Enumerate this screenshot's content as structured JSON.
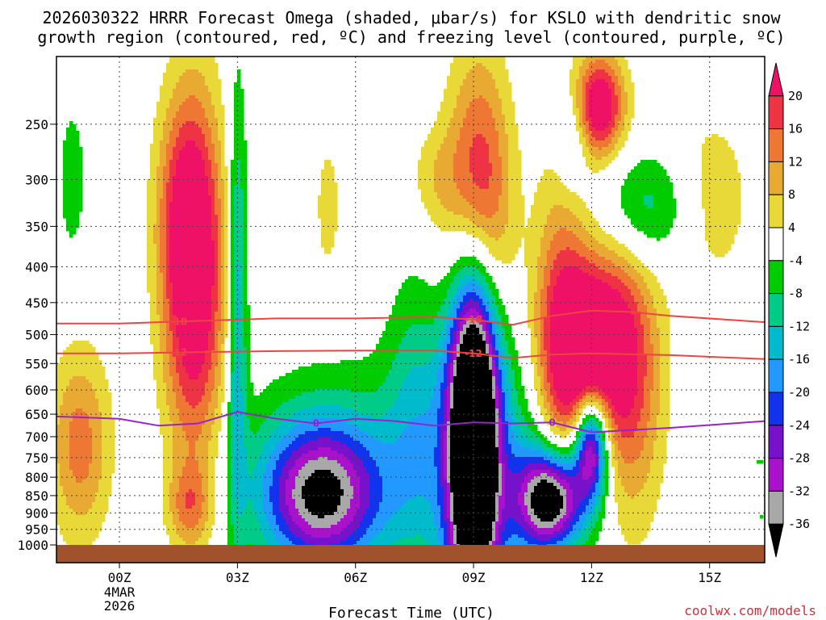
{
  "title": {
    "line1": "2026030322 HRRR Forecast Omega (shaded, μbar/s) for KSLO with dendritic snow",
    "line2": "growth region (contoured, red, ºC) and freezing level (contoured, purple, ºC)"
  },
  "xlabel": "Forecast Time (UTC)",
  "credit": "coolwx.com/models",
  "chart_data": {
    "type": "heatmap",
    "title": "2026030322 HRRR Forecast Omega (shaded, μbar/s) for KSLO with dendritic snow growth region (contoured, red, ºC) and freezing level (contoured, purple, ºC)",
    "xlabel": "Forecast Time (UTC)",
    "ylabel": "",
    "x_range_hours": [
      -1.6,
      16.4
    ],
    "y_range_hPa": [
      1000,
      200
    ],
    "y_scale": "log-pressure (inverted)",
    "x_ticks": [
      {
        "hour": 0,
        "label": "00Z",
        "sub": [
          "4MAR",
          "2026"
        ]
      },
      {
        "hour": 3,
        "label": "03Z",
        "sub": []
      },
      {
        "hour": 6,
        "label": "06Z",
        "sub": []
      },
      {
        "hour": 9,
        "label": "09Z",
        "sub": []
      },
      {
        "hour": 12,
        "label": "12Z",
        "sub": []
      },
      {
        "hour": 15,
        "label": "15Z",
        "sub": []
      }
    ],
    "y_ticks": [
      250,
      300,
      350,
      400,
      450,
      500,
      550,
      600,
      650,
      700,
      750,
      800,
      850,
      900,
      950,
      1000
    ],
    "grid": true,
    "colorbar": {
      "labels": [
        20,
        16,
        12,
        8,
        4,
        -4,
        -8,
        -12,
        -16,
        -20,
        -24,
        -28,
        -32,
        -36
      ],
      "colors": [
        "#ee1166",
        "#ee3344",
        "#ee7733",
        "#e8aa33",
        "#e8d838",
        "#ffffff",
        "#00cc00",
        "#00cc88",
        "#00bbcc",
        "#2299ff",
        "#1133ee",
        "#7711cc",
        "#aa11cc",
        "#a8a8a8",
        "#000000"
      ]
    },
    "omega_centers": [
      {
        "x": 1.9,
        "p": 420,
        "amp": 27,
        "sx": 0.55,
        "sy": 0.42
      },
      {
        "x": 1.6,
        "p": 330,
        "amp": 9,
        "sx": 0.5,
        "sy": 0.25
      },
      {
        "x": 9.1,
        "p": 330,
        "amp": 30,
        "sx": 0.55,
        "sy": 0.32
      },
      {
        "x": 9.0,
        "p": 660,
        "amp": -58,
        "sx": 0.45,
        "sy": 0.45
      },
      {
        "x": 12.2,
        "p": 235,
        "amp": 26,
        "sx": 0.45,
        "sy": 0.12
      },
      {
        "x": 12.0,
        "p": 520,
        "amp": 28,
        "sx": 0.75,
        "sy": 0.22
      },
      {
        "x": 11.2,
        "p": 560,
        "amp": 16,
        "sx": 0.5,
        "sy": 0.45
      },
      {
        "x": 13.0,
        "p": 600,
        "amp": 14,
        "sx": 0.6,
        "sy": 0.35
      },
      {
        "x": 11.0,
        "p": 860,
        "amp": -44,
        "sx": 0.6,
        "sy": 0.12
      },
      {
        "x": 12.0,
        "p": 720,
        "amp": -36,
        "sx": 0.3,
        "sy": 0.12
      },
      {
        "x": 5.1,
        "p": 850,
        "amp": -30,
        "sx": 1.0,
        "sy": 0.16
      },
      {
        "x": 5.5,
        "p": 800,
        "amp": -10,
        "sx": 1.8,
        "sy": 0.25
      },
      {
        "x": 3.0,
        "p": 450,
        "amp": -16,
        "sx": 0.18,
        "sy": 0.5
      },
      {
        "x": -1.0,
        "p": 720,
        "amp": 14,
        "sx": 0.55,
        "sy": 0.22
      },
      {
        "x": 1.8,
        "p": 880,
        "amp": 12,
        "sx": 0.4,
        "sy": 0.1
      },
      {
        "x": 15.0,
        "p": 320,
        "amp": 7,
        "sx": 0.8,
        "sy": 0.22
      },
      {
        "x": 13.4,
        "p": 330,
        "amp": -12,
        "sx": 0.85,
        "sy": 0.14
      },
      {
        "x": 11.5,
        "p": 260,
        "amp": -9,
        "sx": 0.3,
        "sy": 0.12
      },
      {
        "x": -1.2,
        "p": 300,
        "amp": -7,
        "sx": 0.25,
        "sy": 0.18
      },
      {
        "x": 7.5,
        "p": 600,
        "amp": -7,
        "sx": 0.5,
        "sy": 0.3
      },
      {
        "x": 5.3,
        "p": 330,
        "amp": 6,
        "sx": 0.25,
        "sy": 0.18
      },
      {
        "x": 8.0,
        "p": 300,
        "amp": 6,
        "sx": 0.45,
        "sy": 0.12
      },
      {
        "x": 9.5,
        "p": 800,
        "amp": -12,
        "sx": 1.6,
        "sy": 0.35
      },
      {
        "x": 16.3,
        "p": 830,
        "amp": -8,
        "sx": 0.2,
        "sy": 0.08
      }
    ],
    "isotherms": [
      {
        "label": "-18",
        "color": "#ee4444",
        "label_at": [
          1.5,
          9.0
        ],
        "points": [
          [
            -1.6,
            482
          ],
          [
            0,
            482
          ],
          [
            2,
            478
          ],
          [
            4,
            474
          ],
          [
            6,
            474
          ],
          [
            8,
            472
          ],
          [
            9,
            476
          ],
          [
            10,
            484
          ],
          [
            11,
            470
          ],
          [
            12,
            462
          ],
          [
            13,
            464
          ],
          [
            14,
            470
          ],
          [
            16.4,
            480
          ]
        ]
      },
      {
        "label": "-12",
        "color": "#ee4444",
        "label_at": [
          1.5,
          9.0
        ],
        "points": [
          [
            -1.6,
            532
          ],
          [
            0,
            532
          ],
          [
            2,
            530
          ],
          [
            4,
            528
          ],
          [
            6,
            527
          ],
          [
            8,
            527
          ],
          [
            9,
            532
          ],
          [
            10,
            540
          ],
          [
            11,
            534
          ],
          [
            12,
            532
          ],
          [
            14,
            535
          ],
          [
            16.4,
            542
          ]
        ]
      },
      {
        "label": "0",
        "color": "#9922cc",
        "label_at": [
          5.0,
          11.0
        ],
        "points": [
          [
            -1.6,
            655
          ],
          [
            0,
            660
          ],
          [
            1,
            675
          ],
          [
            2,
            670
          ],
          [
            3,
            645
          ],
          [
            4,
            660
          ],
          [
            5,
            670
          ],
          [
            6,
            660
          ],
          [
            7,
            665
          ],
          [
            8,
            675
          ],
          [
            9,
            668
          ],
          [
            10,
            670
          ],
          [
            11,
            668
          ],
          [
            12,
            690
          ],
          [
            13,
            685
          ],
          [
            14,
            680
          ],
          [
            16.4,
            665
          ]
        ]
      }
    ]
  }
}
